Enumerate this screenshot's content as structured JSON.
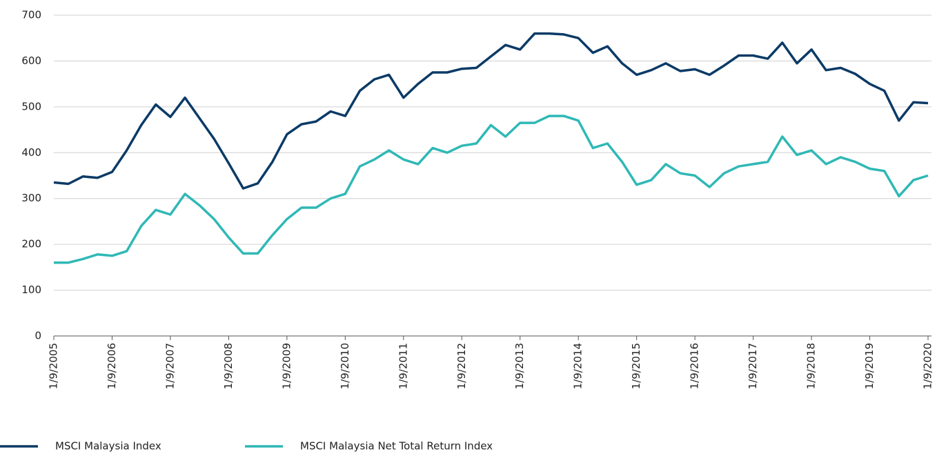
{
  "chart_data": {
    "type": "line",
    "categories": [
      "1/9/2005",
      null,
      null,
      null,
      "1/9/2006",
      null,
      null,
      null,
      "1/9/2007",
      null,
      null,
      null,
      "1/9/2008",
      null,
      null,
      null,
      "1/9/2009",
      null,
      null,
      null,
      "1/9/2010",
      null,
      null,
      null,
      "1/9/2011",
      null,
      null,
      null,
      "1/9/2012",
      null,
      null,
      null,
      "1/9/2013",
      null,
      null,
      null,
      "1/9/2014",
      null,
      null,
      null,
      "1/9/2015",
      null,
      null,
      null,
      "1/9/2016",
      null,
      null,
      null,
      "1/9/2017",
      null,
      null,
      null,
      "1/9/2018",
      null,
      null,
      null,
      "1/9/2019",
      null,
      null,
      null,
      "1/9/2020"
    ],
    "series": [
      {
        "name": "MSCI Malaysia Index",
        "color": "#0b3a66",
        "values": [
          335,
          332,
          348,
          345,
          358,
          405,
          460,
          505,
          478,
          520,
          475,
          430,
          377,
          322,
          333,
          380,
          440,
          462,
          468,
          490,
          480,
          535,
          560,
          570,
          520,
          550,
          575,
          575,
          583,
          585,
          610,
          635,
          625,
          660,
          660,
          658,
          650,
          618,
          632,
          595,
          570,
          580,
          595,
          578,
          582,
          570,
          590,
          612,
          612,
          605,
          640,
          595,
          625,
          580,
          585,
          572,
          550,
          535,
          470,
          510,
          508
        ]
      },
      {
        "name": "MSCI Malaysia Net Total Return Index",
        "color": "#2fb8b6",
        "values": [
          160,
          160,
          168,
          178,
          175,
          185,
          240,
          275,
          265,
          310,
          285,
          255,
          215,
          180,
          180,
          220,
          255,
          280,
          280,
          300,
          310,
          370,
          385,
          405,
          385,
          375,
          410,
          400,
          415,
          420,
          460,
          435,
          465,
          465,
          480,
          480,
          470,
          410,
          420,
          380,
          330,
          340,
          375,
          355,
          350,
          325,
          355,
          370,
          375,
          380,
          435,
          395,
          405,
          375,
          390,
          380,
          365,
          360,
          305,
          340,
          350
        ]
      }
    ],
    "ylim": [
      0,
      700
    ],
    "yticks": [
      0,
      100,
      200,
      300,
      400,
      500,
      600,
      700
    ],
    "grid": true,
    "legend": "bottom"
  }
}
